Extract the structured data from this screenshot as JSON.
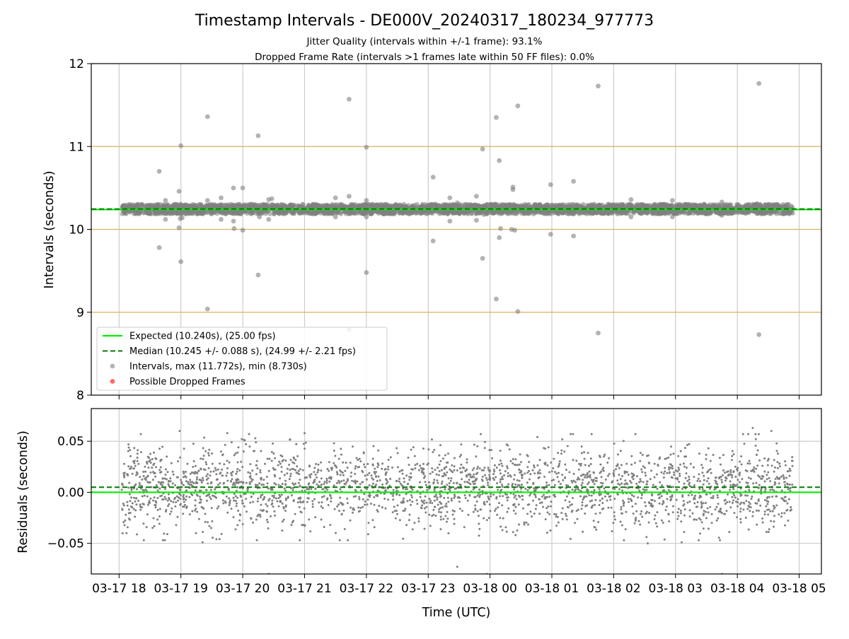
{
  "chart_data": {
    "title": "Timestamp Intervals - DE000V_20240317_180234_977773",
    "subtitle_lines": [
      "Jitter Quality (intervals within +/-1 frame): 93.1%",
      "Dropped Frame Rate (intervals >1 frames late within 50 FF files): 0.0%"
    ],
    "xlabel": "Time (UTC)",
    "x_ticks": [
      "03-17 18",
      "03-17 19",
      "03-17 20",
      "03-17 21",
      "03-17 22",
      "03-17 23",
      "03-18 00",
      "03-18 01",
      "03-18 02",
      "03-18 03",
      "03-18 04",
      "03-18 05"
    ],
    "x_tick_hours": [
      18,
      19,
      20,
      21,
      22,
      23,
      24,
      25,
      26,
      27,
      28,
      29
    ],
    "x_range_hours": [
      17.55,
      29.36
    ],
    "data_range_hours": [
      18.04,
      28.9
    ],
    "colors": {
      "expected": "#00ee00",
      "median": "#007a00",
      "points": "#808080",
      "dropped": "#ff4444",
      "frame_lines": "#d6b25e",
      "grid": "#cccccc"
    },
    "panels": [
      {
        "type": "scatter",
        "ylabel": "Intervals (seconds)",
        "ylim": [
          8,
          12
        ],
        "y_ticks": [
          "8",
          "9",
          "10",
          "11",
          "12"
        ],
        "y_tick_values": [
          8,
          9,
          10,
          11,
          12
        ],
        "frame_lines": [
          9.0,
          10.0,
          11.0
        ],
        "expected_line": 10.24,
        "median_line": 10.245,
        "band": {
          "center": 10.245,
          "half_width": 0.06,
          "count": 3300
        },
        "outliers": [
          [
            18.65,
            10.7
          ],
          [
            18.65,
            9.78
          ],
          [
            18.75,
            10.35
          ],
          [
            18.75,
            10.12
          ],
          [
            18.97,
            10.46
          ],
          [
            18.97,
            10.02
          ],
          [
            18.99,
            10.13
          ],
          [
            19.0,
            11.01
          ],
          [
            19.0,
            9.61
          ],
          [
            19.02,
            10.14
          ],
          [
            19.43,
            11.36
          ],
          [
            19.43,
            10.35
          ],
          [
            19.43,
            9.04
          ],
          [
            19.65,
            10.38
          ],
          [
            19.65,
            10.12
          ],
          [
            19.85,
            10.5
          ],
          [
            19.85,
            10.1
          ],
          [
            19.86,
            10.01
          ],
          [
            20.0,
            10.5
          ],
          [
            20.0,
            9.99
          ],
          [
            20.25,
            11.13
          ],
          [
            20.25,
            9.45
          ],
          [
            20.42,
            10.36
          ],
          [
            20.42,
            10.12
          ],
          [
            20.47,
            10.37
          ],
          [
            20.27,
            10.15
          ],
          [
            21.5,
            10.38
          ],
          [
            21.5,
            10.15
          ],
          [
            21.72,
            11.57
          ],
          [
            21.72,
            10.4
          ],
          [
            21.72,
            8.79
          ],
          [
            22.0,
            10.99
          ],
          [
            22.0,
            10.35
          ],
          [
            22.0,
            10.15
          ],
          [
            22.0,
            9.48
          ],
          [
            23.08,
            10.63
          ],
          [
            23.08,
            9.86
          ],
          [
            23.35,
            10.38
          ],
          [
            23.35,
            10.1
          ],
          [
            23.47,
            10.32
          ],
          [
            23.78,
            10.4
          ],
          [
            23.78,
            10.11
          ],
          [
            23.88,
            10.97
          ],
          [
            23.88,
            9.65
          ],
          [
            23.9,
            10.18
          ],
          [
            24.1,
            11.35
          ],
          [
            24.1,
            9.16
          ],
          [
            24.15,
            10.83
          ],
          [
            24.17,
            10.01
          ],
          [
            24.15,
            9.9
          ],
          [
            24.37,
            10.51
          ],
          [
            24.37,
            10.48
          ],
          [
            24.35,
            10.0
          ],
          [
            24.45,
            11.49
          ],
          [
            24.45,
            9.01
          ],
          [
            24.4,
            9.99
          ],
          [
            24.98,
            10.54
          ],
          [
            24.98,
            9.94
          ],
          [
            25.35,
            10.58
          ],
          [
            25.35,
            9.92
          ],
          [
            25.75,
            11.73
          ],
          [
            25.75,
            8.75
          ],
          [
            26.28,
            10.36
          ],
          [
            26.28,
            10.15
          ],
          [
            26.95,
            10.35
          ],
          [
            26.95,
            10.15
          ],
          [
            27.75,
            10.33
          ],
          [
            27.75,
            10.17
          ],
          [
            28.35,
            11.76
          ],
          [
            28.35,
            8.73
          ],
          [
            28.32,
            10.31
          ]
        ],
        "legend": [
          {
            "kind": "line",
            "label": "Expected (10.240s), (25.00 fps)"
          },
          {
            "kind": "dashed",
            "label": "Median (10.245 +/- 0.088 s), (24.99 +/- 2.21 fps)"
          },
          {
            "kind": "point",
            "label": "Intervals, max (11.772s), min (8.730s)"
          },
          {
            "kind": "dropped",
            "label": "Possible Dropped Frames"
          }
        ]
      },
      {
        "type": "scatter",
        "ylabel": "Residuals (seconds)",
        "ylim": [
          -0.08,
          0.082
        ],
        "y_ticks": [
          "−0.05",
          "0.00",
          "0.05"
        ],
        "y_tick_values": [
          -0.05,
          0.0,
          0.05
        ],
        "expected_line": 0.0,
        "median_line": 0.005,
        "residuals": {
          "mean": 0.005,
          "std": 0.02,
          "count": 2600
        },
        "extra_points": [
          [
            18.12,
            -0.04
          ],
          [
            18.4,
            -0.047
          ],
          [
            18.98,
            0.06
          ],
          [
            19.35,
            -0.049
          ],
          [
            19.75,
            0.058
          ],
          [
            20.42,
            -0.08
          ],
          [
            21.0,
            0.058
          ],
          [
            23.47,
            -0.073
          ],
          [
            23.95,
            -0.08
          ],
          [
            26.55,
            -0.05
          ],
          [
            27.1,
            -0.049
          ],
          [
            27.75,
            -0.08
          ],
          [
            28.25,
            0.063
          ],
          [
            28.55,
            0.06
          ]
        ]
      }
    ]
  }
}
